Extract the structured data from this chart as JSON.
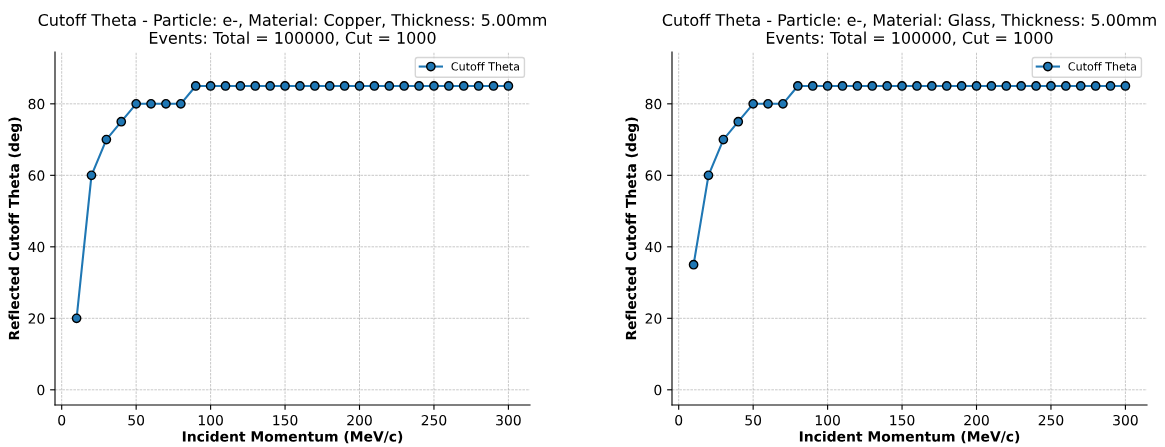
{
  "chart_data": [
    {
      "type": "line",
      "title": "Cutoff Theta - Particle: e-, Material: Copper, Thickness: 5.00mm\nEvents: Total = 100000, Cut = 1000",
      "xlabel": "Incident Momentum (MeV/c)",
      "ylabel": "Reflected Cutoff Theta (deg)",
      "x": [
        10,
        20,
        30,
        40,
        50,
        60,
        70,
        80,
        90,
        100,
        110,
        120,
        130,
        140,
        150,
        160,
        170,
        180,
        190,
        200,
        210,
        220,
        230,
        240,
        250,
        260,
        270,
        280,
        290,
        300
      ],
      "series": [
        {
          "name": "Cutoff Theta",
          "color": "#1f77b4",
          "values": [
            20,
            60,
            70,
            75,
            80,
            80,
            80,
            80,
            85,
            85,
            85,
            85,
            85,
            85,
            85,
            85,
            85,
            85,
            85,
            85,
            85,
            85,
            85,
            85,
            85,
            85,
            85,
            85,
            85,
            85
          ]
        }
      ],
      "xlim": [
        -4.5,
        314.5
      ],
      "ylim": [
        -4.25,
        94.5
      ],
      "xticks": [
        0,
        50,
        100,
        150,
        200,
        250,
        300
      ],
      "yticks": [
        0,
        20,
        40,
        60,
        80
      ],
      "grid": true,
      "legend": "top right",
      "marker": "circle",
      "line_style": "solid"
    },
    {
      "type": "line",
      "title": "Cutoff Theta - Particle: e-, Material: Glass, Thickness: 5.00mm\nEvents: Total = 100000, Cut = 1000",
      "xlabel": "Incident Momentum (MeV/c)",
      "ylabel": "Reflected Cutoff Theta (deg)",
      "x": [
        10,
        20,
        30,
        40,
        50,
        60,
        70,
        80,
        90,
        100,
        110,
        120,
        130,
        140,
        150,
        160,
        170,
        180,
        190,
        200,
        210,
        220,
        230,
        240,
        250,
        260,
        270,
        280,
        290,
        300
      ],
      "series": [
        {
          "name": "Cutoff Theta",
          "color": "#1f77b4",
          "values": [
            35,
            60,
            70,
            75,
            80,
            80,
            80,
            85,
            85,
            85,
            85,
            85,
            85,
            85,
            85,
            85,
            85,
            85,
            85,
            85,
            85,
            85,
            85,
            85,
            85,
            85,
            85,
            85,
            85,
            85
          ]
        }
      ],
      "xlim": [
        -4.5,
        314.5
      ],
      "ylim": [
        -4.25,
        94.5
      ],
      "xticks": [
        0,
        50,
        100,
        150,
        200,
        250,
        300
      ],
      "yticks": [
        0,
        20,
        40,
        60,
        80
      ],
      "grid": true,
      "legend": "top right",
      "marker": "circle",
      "line_style": "solid"
    }
  ]
}
